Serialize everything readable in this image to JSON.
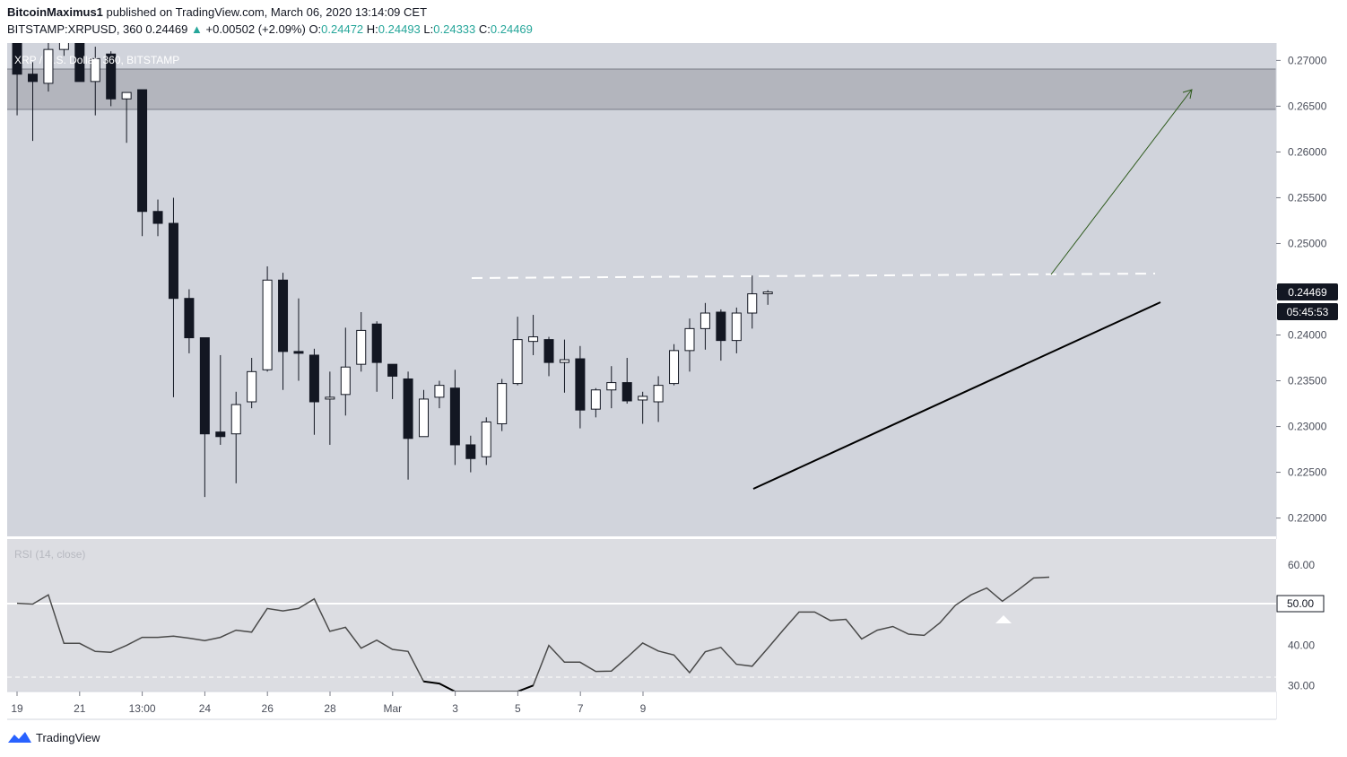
{
  "header": {
    "author": "BitcoinMaximus1",
    "published_text": "published on TradingView.com, March 06, 2020 13:14:09 CET",
    "symbol": "BITSTAMP:XRPUSD, 360",
    "last": "0.24469",
    "change_arrow": "▲",
    "change": "+0.00502 (+2.09%)",
    "o_label": "O:",
    "o_val": "0.24472",
    "h_label": "H:",
    "h_val": "0.24493",
    "l_label": "L:",
    "l_val": "0.24333",
    "c_label": "C:",
    "c_val": "0.24469"
  },
  "footer": {
    "brand": "TradingView"
  },
  "colors": {
    "price_bg": "#d1d4dc",
    "rsi_bg": "#dcdde2",
    "resistance_zone": "#b3b5bd",
    "bull_body": "#ffffff",
    "bear_body": "#131722",
    "up_text": "#26a69a",
    "target_arrow": "#2e5a1c"
  },
  "chart_data": [
    {
      "type": "candlestick",
      "title": "XRP / U.S. Dollar, 360, BITSTAMP",
      "ylim": [
        0.218,
        0.2719
      ],
      "y_ticks": [
        "0.27000",
        "0.26500",
        "0.26000",
        "0.25500",
        "0.25000",
        "0.24500",
        "0.24000",
        "0.23500",
        "0.23000",
        "0.22500",
        "0.22000"
      ],
      "x_ticks": [
        "19",
        "21",
        "13:00",
        "24",
        "26",
        "28",
        "Mar",
        "3",
        "5",
        "7",
        "9"
      ],
      "last_price_label": "0.24469",
      "countdown_label": "05:45:53",
      "resistance_zone": [
        0.2648,
        0.2692
      ],
      "horizontal_resistance": 0.2461,
      "ascending_support": {
        "from": [
          0,
          0.2232
        ],
        "to": [
          26,
          0.2436
        ]
      },
      "projection_arrow": {
        "from": [
          18,
          0.2466
        ],
        "to": [
          27,
          0.2669
        ]
      },
      "candles": [
        {
          "o": 0.2735,
          "h": 0.2765,
          "l": 0.264,
          "c": 0.2685
        },
        {
          "o": 0.2685,
          "h": 0.2698,
          "l": 0.2612,
          "c": 0.2677
        },
        {
          "o": 0.2675,
          "h": 0.272,
          "l": 0.2666,
          "c": 0.2712
        },
        {
          "o": 0.2712,
          "h": 0.274,
          "l": 0.2705,
          "c": 0.2735
        },
        {
          "o": 0.2745,
          "h": 0.2755,
          "l": 0.2678,
          "c": 0.2677
        },
        {
          "o": 0.2677,
          "h": 0.2715,
          "l": 0.264,
          "c": 0.2702
        },
        {
          "o": 0.2707,
          "h": 0.271,
          "l": 0.265,
          "c": 0.2658
        },
        {
          "o": 0.2658,
          "h": 0.2665,
          "l": 0.261,
          "c": 0.2665
        },
        {
          "o": 0.2668,
          "h": 0.2668,
          "l": 0.2508,
          "c": 0.2535
        },
        {
          "o": 0.2535,
          "h": 0.2548,
          "l": 0.2508,
          "c": 0.2522
        },
        {
          "o": 0.2522,
          "h": 0.255,
          "l": 0.2332,
          "c": 0.244
        },
        {
          "o": 0.244,
          "h": 0.245,
          "l": 0.238,
          "c": 0.2397
        },
        {
          "o": 0.2397,
          "h": 0.2397,
          "l": 0.2223,
          "c": 0.2292
        },
        {
          "o": 0.2294,
          "h": 0.2378,
          "l": 0.228,
          "c": 0.2289
        },
        {
          "o": 0.2292,
          "h": 0.2338,
          "l": 0.2238,
          "c": 0.2324
        },
        {
          "o": 0.2327,
          "h": 0.2375,
          "l": 0.232,
          "c": 0.236
        },
        {
          "o": 0.2362,
          "h": 0.2475,
          "l": 0.236,
          "c": 0.246
        },
        {
          "o": 0.246,
          "h": 0.2468,
          "l": 0.234,
          "c": 0.2382
        },
        {
          "o": 0.2382,
          "h": 0.244,
          "l": 0.235,
          "c": 0.2381
        },
        {
          "o": 0.2378,
          "h": 0.2385,
          "l": 0.2291,
          "c": 0.2327
        },
        {
          "o": 0.233,
          "h": 0.236,
          "l": 0.228,
          "c": 0.2332
        },
        {
          "o": 0.2335,
          "h": 0.2408,
          "l": 0.2312,
          "c": 0.2365
        },
        {
          "o": 0.2368,
          "h": 0.2425,
          "l": 0.236,
          "c": 0.2405
        },
        {
          "o": 0.2412,
          "h": 0.2415,
          "l": 0.2338,
          "c": 0.237
        },
        {
          "o": 0.2368,
          "h": 0.2368,
          "l": 0.233,
          "c": 0.2355
        },
        {
          "o": 0.2352,
          "h": 0.236,
          "l": 0.2242,
          "c": 0.2287
        },
        {
          "o": 0.2289,
          "h": 0.234,
          "l": 0.2289,
          "c": 0.233
        },
        {
          "o": 0.2332,
          "h": 0.235,
          "l": 0.232,
          "c": 0.2345
        },
        {
          "o": 0.2342,
          "h": 0.2362,
          "l": 0.2258,
          "c": 0.228
        },
        {
          "o": 0.228,
          "h": 0.229,
          "l": 0.225,
          "c": 0.2265
        },
        {
          "o": 0.2267,
          "h": 0.231,
          "l": 0.2258,
          "c": 0.2305
        },
        {
          "o": 0.2303,
          "h": 0.2352,
          "l": 0.2295,
          "c": 0.2347
        },
        {
          "o": 0.2347,
          "h": 0.242,
          "l": 0.2345,
          "c": 0.2395
        },
        {
          "o": 0.2393,
          "h": 0.2422,
          "l": 0.2378,
          "c": 0.2398
        },
        {
          "o": 0.2395,
          "h": 0.2398,
          "l": 0.2355,
          "c": 0.237
        },
        {
          "o": 0.237,
          "h": 0.2395,
          "l": 0.2337,
          "c": 0.2373
        },
        {
          "o": 0.2374,
          "h": 0.2388,
          "l": 0.2298,
          "c": 0.2318
        },
        {
          "o": 0.2319,
          "h": 0.2342,
          "l": 0.231,
          "c": 0.234
        },
        {
          "o": 0.234,
          "h": 0.2366,
          "l": 0.232,
          "c": 0.2348
        },
        {
          "o": 0.2348,
          "h": 0.2375,
          "l": 0.2325,
          "c": 0.2328
        },
        {
          "o": 0.2329,
          "h": 0.2338,
          "l": 0.2303,
          "c": 0.2333
        },
        {
          "o": 0.2327,
          "h": 0.2355,
          "l": 0.2305,
          "c": 0.2345
        },
        {
          "o": 0.2347,
          "h": 0.239,
          "l": 0.2345,
          "c": 0.2383
        },
        {
          "o": 0.2383,
          "h": 0.2418,
          "l": 0.236,
          "c": 0.2407
        },
        {
          "o": 0.2407,
          "h": 0.2435,
          "l": 0.2384,
          "c": 0.2424
        },
        {
          "o": 0.2425,
          "h": 0.2428,
          "l": 0.2372,
          "c": 0.2394
        },
        {
          "o": 0.2394,
          "h": 0.243,
          "l": 0.238,
          "c": 0.2424
        },
        {
          "o": 0.2424,
          "h": 0.2465,
          "l": 0.2407,
          "c": 0.2445
        },
        {
          "o": 0.2447,
          "h": 0.2449,
          "l": 0.2433,
          "c": 0.2447
        }
      ]
    },
    {
      "type": "line",
      "title": "RSI (14, close)",
      "ylim": [
        28.5,
        66.5
      ],
      "y_ticks": [
        "60.00",
        "50.00",
        "40.00",
        "30.00"
      ],
      "level_line": 50.0,
      "level_label": "50.00",
      "lower_band": 30.0,
      "values": [
        50.5,
        50.3,
        52.6,
        40.5,
        40.5,
        38.5,
        38.3,
        40.0,
        42.0,
        42.0,
        42.3,
        41.8,
        41.2,
        42.0,
        43.8,
        43.3,
        49.2,
        48.6,
        49.2,
        51.6,
        43.5,
        44.5,
        39.3,
        41.3,
        39.0,
        38.5,
        31.0,
        30.5,
        27.8,
        26.0,
        24.5,
        26.0,
        27.8,
        30.0,
        40.0,
        35.8,
        35.8,
        33.5,
        33.6,
        37.0,
        40.6,
        38.6,
        37.6,
        33.2,
        38.4,
        39.5,
        35.3,
        34.8,
        39.3,
        43.9,
        48.3,
        48.3,
        46.2,
        46.5,
        41.6,
        43.8,
        44.7,
        42.8,
        42.5,
        45.6,
        50.0,
        52.6,
        54.3,
        51.0,
        53.8,
        56.8,
        57.0
      ]
    }
  ]
}
